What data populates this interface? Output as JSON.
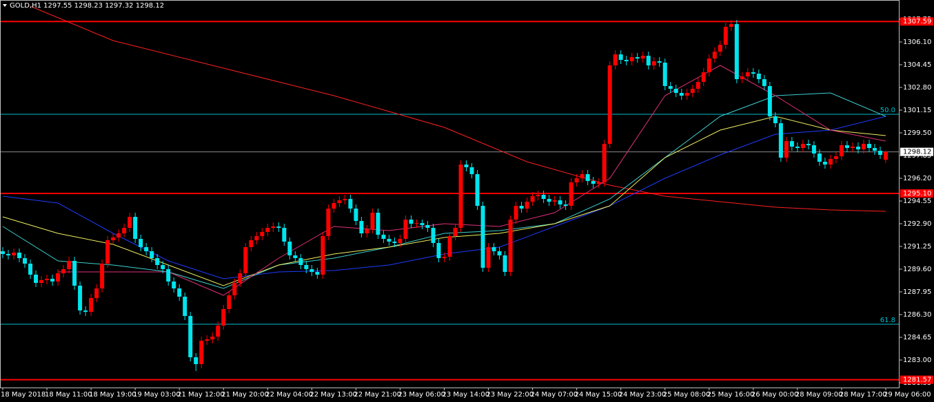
{
  "chart_data": {
    "type": "candlestick",
    "title": "GOLD,H1  1297.55 1298.23 1297.32 1298.12",
    "up_color": "#ff0000",
    "down_color": "#00e5ee",
    "ylim": [
      1281.0,
      1309.15
    ],
    "xlim": [
      -0.5,
      162.5
    ],
    "yticks": [
      1307.75,
      {
        "value": 1306.1,
        "label": "1306.10"
      },
      1304.45,
      {
        "value": 1302.8,
        "label": "1302.80"
      },
      1301.15,
      {
        "value": 1299.5,
        "label": "1299.50"
      },
      1297.85,
      {
        "value": 1296.2,
        "label": "1296.20"
      },
      1294.55,
      {
        "value": 1292.9,
        "label": "1292.90"
      },
      1291.25,
      {
        "value": 1289.6,
        "label": "1289.60"
      },
      1287.95,
      {
        "value": 1286.3,
        "label": "1286.30"
      },
      1284.65,
      {
        "value": 1283,
        "label": "1283.00"
      },
      1281.35
    ],
    "xticks": [
      {
        "value": 0,
        "label": "18 May 2018"
      },
      {
        "value": 8,
        "label": "18 May 11:00"
      },
      {
        "value": 16,
        "label": "18 May 19:00"
      },
      {
        "value": 24,
        "label": "19 May 03:00"
      },
      {
        "value": 32,
        "label": "21 May 12:00"
      },
      {
        "value": 40,
        "label": "21 May 20:00"
      },
      {
        "value": 48,
        "label": "22 May 04:00"
      },
      {
        "value": 56,
        "label": "22 May 13:00"
      },
      {
        "value": 64,
        "label": "22 May 21:00"
      },
      {
        "value": 72,
        "label": "23 May 06:00"
      },
      {
        "value": 80,
        "label": "23 May 14:00"
      },
      {
        "value": 88,
        "label": "23 May 22:00"
      },
      {
        "value": 96,
        "label": "24 May 07:00"
      },
      {
        "value": 104,
        "label": "24 May 15:00"
      },
      {
        "value": 112,
        "label": "24 May 23:00"
      },
      {
        "value": 120,
        "label": "25 May 08:00"
      },
      {
        "value": 128,
        "label": "25 May 16:00"
      },
      {
        "value": 136,
        "label": "26 May 00:00"
      },
      {
        "value": 144,
        "label": "28 May 09:00"
      },
      {
        "value": 152,
        "label": "28 May 17:00"
      },
      {
        "value": 160,
        "label": "29 May 06:00"
      }
    ],
    "ohlc": [
      [
        1290.9,
        1291.2,
        1290.4,
        1290.7
      ],
      [
        1290.7,
        1291.0,
        1290.3,
        1290.6
      ],
      [
        1290.6,
        1291.1,
        1290.3,
        1290.8
      ],
      [
        1290.8,
        1291.1,
        1290.1,
        1290.4
      ],
      [
        1290.4,
        1290.7,
        1289.7,
        1290.0
      ],
      [
        1290.0,
        1290.3,
        1288.9,
        1289.2
      ],
      [
        1289.2,
        1289.5,
        1288.3,
        1288.6
      ],
      [
        1288.6,
        1289.1,
        1288.3,
        1288.8
      ],
      [
        1288.8,
        1289.2,
        1288.5,
        1288.9
      ],
      [
        1288.9,
        1289.2,
        1288.4,
        1288.7
      ],
      [
        1288.7,
        1289.6,
        1288.4,
        1289.3
      ],
      [
        1289.3,
        1289.9,
        1289.0,
        1289.6
      ],
      [
        1289.6,
        1290.5,
        1289.3,
        1290.2
      ],
      [
        1290.2,
        1290.5,
        1288.1,
        1288.4
      ],
      [
        1288.4,
        1288.7,
        1286.3,
        1286.6
      ],
      [
        1286.6,
        1286.9,
        1286.2,
        1286.5
      ],
      [
        1286.5,
        1287.8,
        1286.2,
        1287.5
      ],
      [
        1287.5,
        1288.5,
        1287.2,
        1288.2
      ],
      [
        1288.2,
        1290.3,
        1287.9,
        1290.0
      ],
      [
        1290.0,
        1292.0,
        1289.7,
        1291.7
      ],
      [
        1291.7,
        1292.2,
        1291.4,
        1291.9
      ],
      [
        1291.9,
        1292.5,
        1291.6,
        1292.2
      ],
      [
        1292.2,
        1292.9,
        1291.9,
        1292.6
      ],
      [
        1292.6,
        1293.7,
        1292.3,
        1293.4
      ],
      [
        1293.4,
        1293.7,
        1291.5,
        1291.8
      ],
      [
        1291.8,
        1292.1,
        1290.9,
        1291.2
      ],
      [
        1291.2,
        1291.5,
        1290.6,
        1290.9
      ],
      [
        1290.9,
        1291.2,
        1290.1,
        1290.4
      ],
      [
        1290.4,
        1290.7,
        1289.6,
        1289.9
      ],
      [
        1289.9,
        1290.2,
        1289.3,
        1289.6
      ],
      [
        1289.6,
        1289.9,
        1288.4,
        1288.7
      ],
      [
        1288.7,
        1289.0,
        1287.9,
        1288.2
      ],
      [
        1288.2,
        1288.5,
        1287.3,
        1287.6
      ],
      [
        1287.6,
        1287.9,
        1285.9,
        1286.2
      ],
      [
        1286.2,
        1286.5,
        1282.9,
        1283.2
      ],
      [
        1283.2,
        1283.5,
        1282.2,
        1282.7
      ],
      [
        1282.7,
        1284.7,
        1282.4,
        1284.4
      ],
      [
        1284.4,
        1284.8,
        1284.1,
        1284.5
      ],
      [
        1284.5,
        1285.0,
        1284.2,
        1284.7
      ],
      [
        1284.7,
        1285.8,
        1284.4,
        1285.5
      ],
      [
        1285.5,
        1287.0,
        1285.2,
        1286.7
      ],
      [
        1286.7,
        1288.0,
        1286.4,
        1287.7
      ],
      [
        1287.7,
        1288.9,
        1287.4,
        1288.6
      ],
      [
        1288.6,
        1289.6,
        1288.3,
        1289.3
      ],
      [
        1289.3,
        1291.5,
        1289.0,
        1291.2
      ],
      [
        1291.2,
        1292.0,
        1290.9,
        1291.7
      ],
      [
        1291.7,
        1292.3,
        1291.4,
        1292.0
      ],
      [
        1292.0,
        1292.6,
        1291.7,
        1292.3
      ],
      [
        1292.3,
        1292.9,
        1292.0,
        1292.6
      ],
      [
        1292.6,
        1293.0,
        1292.3,
        1292.7
      ],
      [
        1292.7,
        1293.0,
        1292.3,
        1292.6
      ],
      [
        1292.6,
        1292.9,
        1291.3,
        1291.6
      ],
      [
        1291.6,
        1291.9,
        1290.3,
        1290.6
      ],
      [
        1290.6,
        1290.9,
        1290.1,
        1290.4
      ],
      [
        1290.4,
        1290.7,
        1289.6,
        1289.9
      ],
      [
        1289.9,
        1290.2,
        1289.3,
        1289.6
      ],
      [
        1289.6,
        1289.9,
        1289.1,
        1289.4
      ],
      [
        1289.4,
        1289.7,
        1288.9,
        1289.2
      ],
      [
        1289.2,
        1292.3,
        1288.9,
        1292.0
      ],
      [
        1292.0,
        1294.3,
        1291.7,
        1294.0
      ],
      [
        1294.0,
        1294.7,
        1293.7,
        1294.4
      ],
      [
        1294.4,
        1294.9,
        1294.1,
        1294.6
      ],
      [
        1294.6,
        1295.0,
        1294.3,
        1294.7
      ],
      [
        1294.7,
        1295.0,
        1293.7,
        1294.0
      ],
      [
        1294.0,
        1294.3,
        1292.8,
        1293.1
      ],
      [
        1293.1,
        1293.4,
        1291.9,
        1292.2
      ],
      [
        1292.2,
        1292.8,
        1291.9,
        1292.5
      ],
      [
        1292.5,
        1294.0,
        1292.2,
        1293.7
      ],
      [
        1293.7,
        1294.0,
        1291.8,
        1292.1
      ],
      [
        1292.1,
        1292.4,
        1291.5,
        1291.8
      ],
      [
        1291.8,
        1292.1,
        1291.3,
        1291.6
      ],
      [
        1291.6,
        1291.9,
        1291.2,
        1291.5
      ],
      [
        1291.5,
        1292.1,
        1291.2,
        1291.8
      ],
      [
        1291.8,
        1293.5,
        1291.5,
        1293.2
      ],
      [
        1293.2,
        1293.5,
        1292.6,
        1292.9
      ],
      [
        1292.9,
        1293.2,
        1292.6,
        1292.95
      ],
      [
        1292.95,
        1293.2,
        1292.5,
        1292.8
      ],
      [
        1292.8,
        1293.1,
        1292.3,
        1292.6
      ],
      [
        1292.6,
        1292.9,
        1291.2,
        1291.5
      ],
      [
        1291.5,
        1291.8,
        1290.1,
        1290.4
      ],
      [
        1290.4,
        1290.8,
        1290.1,
        1290.5
      ],
      [
        1290.5,
        1292.3,
        1290.2,
        1292.0
      ],
      [
        1292.0,
        1292.9,
        1291.7,
        1292.6
      ],
      [
        1292.6,
        1297.5,
        1292.3,
        1297.2
      ],
      [
        1297.2,
        1297.5,
        1296.7,
        1297.0
      ],
      [
        1297.0,
        1297.3,
        1296.2,
        1296.5
      ],
      [
        1296.5,
        1296.8,
        1293.9,
        1294.2
      ],
      [
        1294.2,
        1294.5,
        1289.4,
        1289.7
      ],
      [
        1289.7,
        1291.5,
        1289.4,
        1291.2
      ],
      [
        1291.2,
        1291.5,
        1290.6,
        1290.9
      ],
      [
        1290.9,
        1291.2,
        1290.3,
        1290.6
      ],
      [
        1290.6,
        1290.9,
        1289.1,
        1289.4
      ],
      [
        1289.4,
        1293.5,
        1289.1,
        1293.2
      ],
      [
        1293.2,
        1294.5,
        1292.9,
        1294.2
      ],
      [
        1294.2,
        1294.5,
        1293.7,
        1294.0
      ],
      [
        1294.0,
        1294.8,
        1293.7,
        1294.5
      ],
      [
        1294.5,
        1295.2,
        1294.2,
        1294.9
      ],
      [
        1294.9,
        1295.3,
        1294.6,
        1295.0
      ],
      [
        1295.0,
        1295.3,
        1294.4,
        1294.7
      ],
      [
        1294.7,
        1295.0,
        1294.2,
        1294.5
      ],
      [
        1294.5,
        1294.9,
        1294.2,
        1294.6
      ],
      [
        1294.6,
        1294.9,
        1294.0,
        1294.3
      ],
      [
        1294.3,
        1294.6,
        1293.9,
        1294.2
      ],
      [
        1294.2,
        1296.2,
        1293.9,
        1295.9
      ],
      [
        1295.9,
        1296.5,
        1295.6,
        1296.2
      ],
      [
        1296.2,
        1296.8,
        1295.9,
        1296.5
      ],
      [
        1296.5,
        1296.8,
        1295.7,
        1296.0
      ],
      [
        1296.0,
        1296.3,
        1295.5,
        1295.8
      ],
      [
        1295.8,
        1296.2,
        1295.5,
        1295.9
      ],
      [
        1295.9,
        1299.0,
        1295.6,
        1298.7
      ],
      [
        1298.7,
        1304.7,
        1298.4,
        1304.4
      ],
      [
        1304.4,
        1305.5,
        1304.1,
        1305.2
      ],
      [
        1305.2,
        1305.5,
        1304.5,
        1304.8
      ],
      [
        1304.8,
        1305.1,
        1304.4,
        1304.7
      ],
      [
        1304.7,
        1305.3,
        1304.4,
        1305.0
      ],
      [
        1305.0,
        1305.3,
        1304.6,
        1304.9
      ],
      [
        1304.9,
        1305.4,
        1304.6,
        1305.1
      ],
      [
        1305.1,
        1305.4,
        1304.1,
        1304.4
      ],
      [
        1304.4,
        1305.0,
        1304.1,
        1304.7
      ],
      [
        1304.7,
        1305.0,
        1304.3,
        1304.6
      ],
      [
        1304.6,
        1304.9,
        1302.6,
        1302.9
      ],
      [
        1302.9,
        1303.2,
        1302.4,
        1302.7
      ],
      [
        1302.7,
        1303.0,
        1302.1,
        1302.4
      ],
      [
        1302.4,
        1302.7,
        1301.9,
        1302.2
      ],
      [
        1302.2,
        1302.7,
        1301.9,
        1302.4
      ],
      [
        1302.4,
        1303.0,
        1302.1,
        1302.7
      ],
      [
        1302.7,
        1303.5,
        1302.4,
        1303.2
      ],
      [
        1303.2,
        1304.2,
        1302.9,
        1303.9
      ],
      [
        1303.9,
        1305.2,
        1303.6,
        1304.9
      ],
      [
        1304.9,
        1305.7,
        1304.6,
        1305.4
      ],
      [
        1305.4,
        1306.2,
        1305.1,
        1305.9
      ],
      [
        1305.9,
        1307.5,
        1305.6,
        1307.2
      ],
      [
        1307.2,
        1307.7,
        1306.9,
        1307.4
      ],
      [
        1307.4,
        1307.7,
        1303.1,
        1303.4
      ],
      [
        1303.4,
        1303.9,
        1303.1,
        1303.6
      ],
      [
        1303.6,
        1304.2,
        1303.3,
        1303.9
      ],
      [
        1303.9,
        1304.2,
        1303.5,
        1303.8
      ],
      [
        1303.8,
        1304.1,
        1303.1,
        1303.4
      ],
      [
        1303.4,
        1303.7,
        1302.6,
        1302.9
      ],
      [
        1302.9,
        1303.2,
        1300.4,
        1300.7
      ],
      [
        1300.7,
        1301.0,
        1299.9,
        1300.2
      ],
      [
        1300.2,
        1300.5,
        1297.4,
        1297.7
      ],
      [
        1297.7,
        1299.2,
        1297.4,
        1298.9
      ],
      [
        1298.9,
        1299.2,
        1298.2,
        1298.5
      ],
      [
        1298.5,
        1298.8,
        1298.1,
        1298.4
      ],
      [
        1298.4,
        1299.0,
        1298.1,
        1298.7
      ],
      [
        1298.7,
        1299.0,
        1298.3,
        1298.6
      ],
      [
        1298.6,
        1298.9,
        1297.7,
        1298.0
      ],
      [
        1298.0,
        1298.3,
        1297.1,
        1297.4
      ],
      [
        1297.4,
        1297.7,
        1296.9,
        1297.2
      ],
      [
        1297.2,
        1297.9,
        1296.9,
        1297.6
      ],
      [
        1297.6,
        1298.1,
        1297.3,
        1297.8
      ],
      [
        1297.8,
        1298.9,
        1297.5,
        1298.6
      ],
      [
        1298.6,
        1298.9,
        1298.1,
        1298.4
      ],
      [
        1298.4,
        1298.8,
        1298.1,
        1298.5
      ],
      [
        1298.5,
        1298.8,
        1298.0,
        1298.3
      ],
      [
        1298.3,
        1299.0,
        1298.0,
        1298.7
      ],
      [
        1298.7,
        1299.0,
        1298.1,
        1298.4
      ],
      [
        1298.4,
        1298.7,
        1297.9,
        1298.2
      ],
      [
        1298.2,
        1298.5,
        1297.6,
        1297.9
      ],
      [
        1297.55,
        1298.23,
        1297.32,
        1298.12
      ]
    ],
    "series": [
      {
        "color": "#ff2020",
        "x": [
          5,
          20,
          40,
          60,
          80,
          95,
          110,
          120,
          140,
          150,
          160
        ],
        "values": [
          1308.7,
          1306.2,
          1304.2,
          1302.2,
          1299.9,
          1297.4,
          1295.7,
          1294.9,
          1294.1,
          1293.9,
          1293.8
        ]
      },
      {
        "color": "#1e3cff",
        "x": [
          0,
          10,
          20,
          30,
          40,
          50,
          60,
          70,
          80,
          90,
          100,
          110,
          120,
          130,
          140,
          150,
          160
        ],
        "values": [
          1294.9,
          1294.4,
          1292.2,
          1290.2,
          1288.9,
          1289.4,
          1289.5,
          1289.9,
          1290.7,
          1291.2,
          1292.7,
          1294.2,
          1296.2,
          1297.9,
          1299.4,
          1299.7,
          1300.7
        ]
      },
      {
        "color": "#3fd0d0",
        "x": [
          0,
          10,
          20,
          30,
          40,
          50,
          60,
          70,
          80,
          90,
          100,
          110,
          120,
          130,
          140,
          150,
          160
        ],
        "values": [
          1292.7,
          1290.2,
          1289.9,
          1289.4,
          1288.2,
          1289.9,
          1290.4,
          1291.2,
          1292.2,
          1292.4,
          1292.9,
          1294.7,
          1297.7,
          1300.7,
          1302.2,
          1302.4,
          1300.7
        ]
      },
      {
        "color": "#f0f060",
        "x": [
          0,
          10,
          20,
          30,
          40,
          50,
          60,
          70,
          80,
          90,
          100,
          110,
          120,
          130,
          140,
          150,
          160
        ],
        "values": [
          1293.4,
          1292.2,
          1291.4,
          1289.9,
          1288.4,
          1289.9,
          1290.7,
          1291.2,
          1291.9,
          1292.2,
          1292.9,
          1294.2,
          1297.7,
          1299.7,
          1300.7,
          1299.7,
          1299.3
        ]
      },
      {
        "color": "#e0307a",
        "x": [
          0,
          10,
          20,
          30,
          40,
          50,
          60,
          70,
          80,
          90,
          100,
          110,
          120,
          130,
          140,
          150,
          160
        ],
        "values": [
          null,
          1289.4,
          1289.4,
          1289.4,
          1287.7,
          1290.4,
          1292.7,
          1292.4,
          1292.9,
          1292.7,
          1293.7,
          1296.2,
          1302.2,
          1304.4,
          1302.2,
          1299.7,
          1298.9
        ]
      }
    ],
    "levels": [
      {
        "price": 1307.59,
        "label": "1307.59",
        "color": "#ff0000",
        "tag": true
      },
      {
        "price": 1300.85,
        "label": "50.0",
        "color": "#00c0d0",
        "tag": false
      },
      {
        "price": 1298.12,
        "label": "1298.12",
        "color": "#8a8a8a",
        "tag": true
      },
      {
        "price": 1295.1,
        "label": "1295.10",
        "color": "#ff0000",
        "tag": true
      },
      {
        "price": 1285.6,
        "label": "61.8",
        "color": "#00c0d0",
        "tag": false
      },
      {
        "price": 1281.57,
        "label": "1281.57",
        "color": "#ff0000",
        "tag": true
      }
    ]
  }
}
